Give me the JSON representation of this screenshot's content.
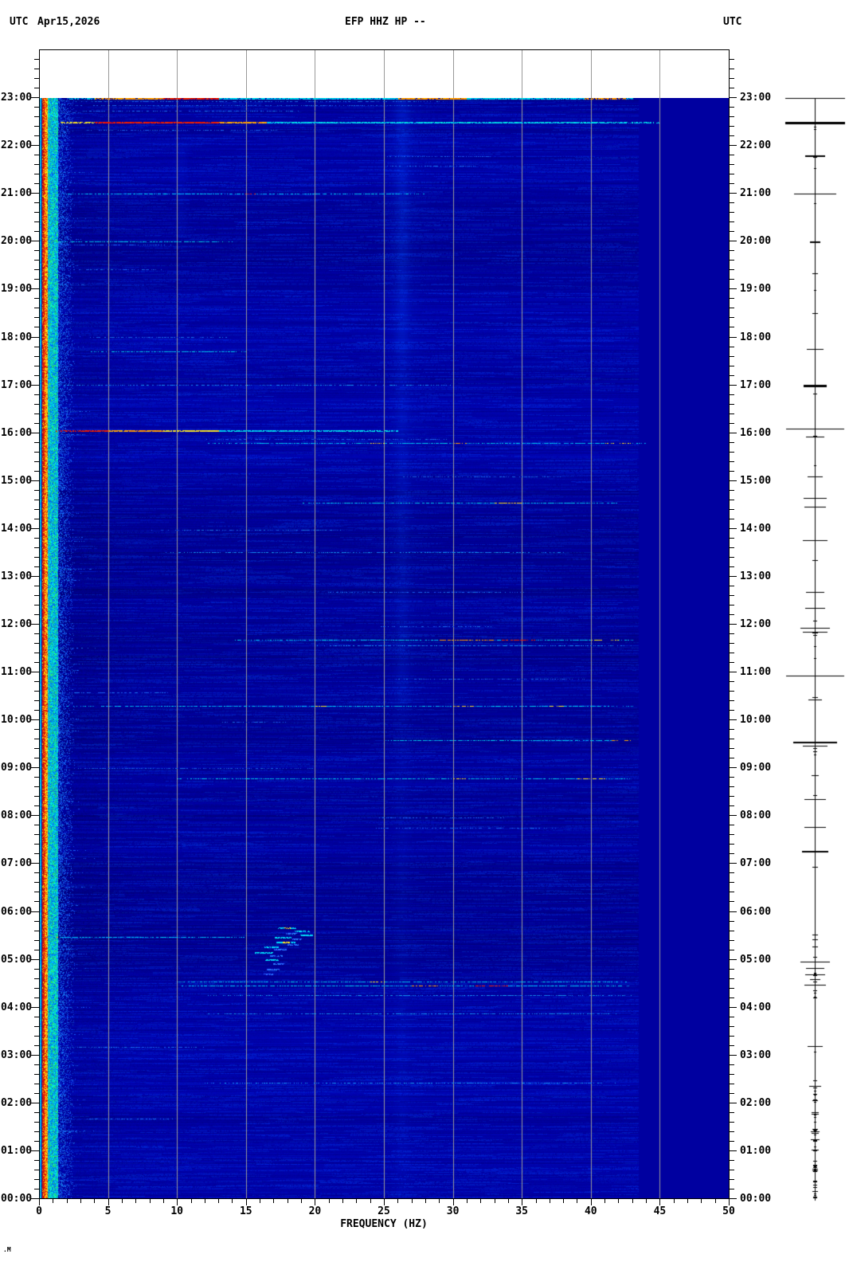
{
  "header": {
    "tz_left": "UTC",
    "date": "Apr15,2026",
    "title": "EFP HHZ HP --",
    "tz_right": "UTC"
  },
  "watermark": ".M",
  "colors": {
    "page_bg": "#ffffff",
    "plot_flat_navy": "#0000a0",
    "grid": "#999999",
    "axis": "#000000",
    "microseism_red": "#cc0000",
    "band_orange": "#ff9000",
    "event_cyan": "#00c8ff",
    "event_red": "#e02000",
    "event_yellow": "#f0d020",
    "tremor_blue": "#2850ff"
  },
  "chart_data": {
    "type": "heatmap",
    "title": "EFP HHZ HP --",
    "date": "Apr15,2026",
    "timezone": "UTC",
    "xlabel": "FREQUENCY (HZ)",
    "x_range_hz": [
      0,
      50
    ],
    "x_major_tick_step_hz": 5,
    "x_minor_tick_step_hz": 1,
    "x_tick_labels": [
      "0",
      "5",
      "10",
      "15",
      "20",
      "25",
      "30",
      "35",
      "40",
      "45",
      "50"
    ],
    "grid_hz": [
      5,
      10,
      15,
      20,
      25,
      30,
      35,
      40,
      45
    ],
    "time_axis": {
      "top": "24:00",
      "bottom": "00:00",
      "major_step_min": 60,
      "minor_step_min": 12,
      "hour_labels": [
        "23:00",
        "22:00",
        "21:00",
        "20:00",
        "19:00",
        "18:00",
        "17:00",
        "16:00",
        "15:00",
        "14:00",
        "13:00",
        "12:00",
        "11:00",
        "10:00",
        "09:00",
        "08:00",
        "07:00",
        "06:00",
        "05:00",
        "04:00",
        "03:00",
        "02:00",
        "01:00",
        "00:00"
      ]
    },
    "spectrogram_extent_hz": 43.5,
    "microseism_band": {
      "f0": 0,
      "f1": 2.4,
      "peak_hz": 0.25
    },
    "vertical_band_hz": 26.3,
    "events": [
      {
        "t": "23:00",
        "f0": 2,
        "f1": 43,
        "lvl": "strong",
        "hot": [
          [
            4,
            9,
            "orange"
          ],
          [
            9,
            13,
            "red"
          ],
          [
            26,
            31,
            "orange"
          ],
          [
            39.5,
            42.5,
            "orange"
          ]
        ]
      },
      {
        "t": "22:56",
        "f0": 2,
        "f1": 30,
        "lvl": "faint"
      },
      {
        "t": "22:51",
        "f0": 2,
        "f1": 28,
        "lvl": "faint"
      },
      {
        "t": "22:44",
        "f0": 2,
        "f1": 20,
        "lvl": "faint"
      },
      {
        "t": "22:30",
        "f0": 0.8,
        "f1": 45,
        "lvl": "strong",
        "hot": [
          [
            1.5,
            4,
            "yellow"
          ],
          [
            4,
            13,
            "red"
          ],
          [
            13,
            16.5,
            "orange"
          ]
        ]
      },
      {
        "t": "22:20",
        "f0": 3,
        "f1": 18,
        "lvl": "faint"
      },
      {
        "t": "21:47",
        "f0": 25,
        "f1": 33,
        "lvl": "faint"
      },
      {
        "t": "21:35",
        "f0": 25,
        "f1": 32,
        "lvl": "faint"
      },
      {
        "t": "21:00",
        "f0": 1,
        "f1": 28,
        "lvl": "cyan",
        "hot": [
          [
            14.8,
            15.7,
            "red"
          ]
        ]
      },
      {
        "t": "20:00",
        "f0": 1,
        "f1": 14,
        "lvl": "cyan"
      },
      {
        "t": "19:56",
        "f0": 1,
        "f1": 10,
        "lvl": "faint"
      },
      {
        "t": "19:25",
        "f0": 2,
        "f1": 9,
        "lvl": "faint"
      },
      {
        "t": "18:00",
        "f0": 3,
        "f1": 14,
        "lvl": "faint"
      },
      {
        "t": "17:42",
        "f0": 3.5,
        "f1": 15,
        "lvl": "cyan"
      },
      {
        "t": "17:00",
        "f0": 1,
        "f1": 30,
        "lvl": "dim"
      },
      {
        "t": "16:03",
        "f0": 0.8,
        "f1": 26,
        "lvl": "strong",
        "hot": [
          [
            1.2,
            5,
            "red"
          ],
          [
            5,
            9,
            "orange"
          ],
          [
            9,
            13,
            "yellow"
          ]
        ]
      },
      {
        "t": "15:52",
        "f0": 12,
        "f1": 30,
        "lvl": "faint"
      },
      {
        "t": "15:47",
        "f0": 12,
        "f1": 44,
        "lvl": "cyan",
        "hot": [
          [
            24,
            25,
            "yellow"
          ],
          [
            30,
            31,
            "orange"
          ],
          [
            41,
            43,
            "yellow"
          ]
        ]
      },
      {
        "t": "15:05",
        "f0": 26,
        "f1": 38,
        "lvl": "faint"
      },
      {
        "t": "14:32",
        "f0": 19,
        "f1": 42,
        "lvl": "cyan",
        "hot": [
          [
            33,
            35,
            "yellow"
          ]
        ]
      },
      {
        "t": "13:58",
        "f0": 8,
        "f1": 22,
        "lvl": "faint"
      },
      {
        "t": "13:30",
        "f0": 9,
        "f1": 38,
        "lvl": "dim"
      },
      {
        "t": "12:40",
        "f0": 20,
        "f1": 36,
        "lvl": "faint"
      },
      {
        "t": "11:57",
        "f0": 24,
        "f1": 33,
        "lvl": "faint"
      },
      {
        "t": "11:40",
        "f0": 14,
        "f1": 43,
        "lvl": "cyan",
        "hot": [
          [
            29,
            33,
            "orange"
          ],
          [
            33.5,
            36,
            "red"
          ],
          [
            40,
            42,
            "yellow"
          ]
        ]
      },
      {
        "t": "11:33",
        "f0": 20,
        "f1": 43,
        "lvl": "dim"
      },
      {
        "t": "10:52",
        "f0": 25,
        "f1": 40,
        "lvl": "faint"
      },
      {
        "t": "10:35",
        "f0": 1,
        "f1": 10,
        "lvl": "faint"
      },
      {
        "t": "10:18",
        "f0": 2,
        "f1": 43,
        "lvl": "cyan",
        "hot": [
          [
            20,
            20.8,
            "yellow"
          ],
          [
            30,
            31.5,
            "yellow"
          ],
          [
            37,
            38,
            "yellow"
          ]
        ]
      },
      {
        "t": "09:58",
        "f0": 13,
        "f1": 18,
        "lvl": "faint"
      },
      {
        "t": "09:35",
        "f0": 25,
        "f1": 43,
        "lvl": "cyan",
        "hot": [
          [
            41.5,
            43,
            "orange"
          ]
        ]
      },
      {
        "t": "09:00",
        "f0": 2,
        "f1": 20,
        "lvl": "faint"
      },
      {
        "t": "08:47",
        "f0": 10,
        "f1": 43,
        "lvl": "cyan",
        "hot": [
          [
            30,
            31,
            "yellow"
          ],
          [
            39,
            41,
            "yellow"
          ]
        ]
      },
      {
        "t": "07:58",
        "f0": 24,
        "f1": 34,
        "lvl": "faint"
      },
      {
        "t": "07:45",
        "f0": 24,
        "f1": 38,
        "lvl": "faint"
      },
      {
        "t": "05:28",
        "f0": 0.5,
        "f1": 15,
        "lvl": "cyan",
        "hot": [
          [
            1,
            1.5,
            "orange"
          ]
        ]
      },
      {
        "t": "04:32",
        "f0": 10,
        "f1": 43,
        "lvl": "cyan",
        "hot": [
          [
            24,
            25,
            "yellow"
          ]
        ]
      },
      {
        "t": "04:27",
        "f0": 10,
        "f1": 43,
        "lvl": "cyan",
        "hot": [
          [
            27,
            29,
            "orange"
          ],
          [
            31.5,
            34,
            "red"
          ]
        ]
      },
      {
        "t": "04:15",
        "f0": 12,
        "f1": 43,
        "lvl": "dim"
      },
      {
        "t": "03:52",
        "f0": 12,
        "f1": 42,
        "lvl": "dim"
      },
      {
        "t": "03:10",
        "f0": 2,
        "f1": 12,
        "lvl": "faint"
      },
      {
        "t": "02:25",
        "f0": 12,
        "f1": 42,
        "lvl": "dim"
      },
      {
        "t": "01:40",
        "f0": 3,
        "f1": 10,
        "lvl": "faint"
      }
    ],
    "tremor_cluster": {
      "f0": 16,
      "f1": 19.7,
      "t_start": "05:42",
      "t_end": "04:40",
      "dashes": [
        [
          18.0,
          "05:40",
          1.3,
          "y"
        ],
        [
          19.1,
          "05:36",
          1.1,
          "c"
        ],
        [
          18.3,
          "05:33",
          0.8,
          "b"
        ],
        [
          19.4,
          "05:31",
          0.9,
          "c"
        ],
        [
          17.7,
          "05:28",
          1.2,
          "c"
        ],
        [
          18.7,
          "05:26",
          0.7,
          "b"
        ],
        [
          17.9,
          "05:22",
          1.4,
          "y"
        ],
        [
          18.4,
          "05:19",
          0.8,
          "b"
        ],
        [
          16.9,
          "05:16",
          1.1,
          "c"
        ],
        [
          17.5,
          "05:13",
          0.9,
          "b"
        ],
        [
          16.3,
          "05:09",
          1.3,
          "c"
        ],
        [
          17.2,
          "05:05",
          0.9,
          "b"
        ],
        [
          16.9,
          "05:00",
          1.0,
          "c"
        ],
        [
          17.4,
          "04:55",
          0.8,
          "b"
        ],
        [
          17.0,
          "04:48",
          0.9,
          "b"
        ],
        [
          16.6,
          "04:42",
          0.7,
          "b"
        ]
      ]
    },
    "amplitude_trace": {
      "events": [
        [
          "23:00",
          37,
          1
        ],
        [
          "22:30",
          37,
          3
        ],
        [
          "21:48",
          12,
          2
        ],
        [
          "21:00",
          26,
          1
        ],
        [
          "20:00",
          6,
          2
        ],
        [
          "19:20",
          3,
          1
        ],
        [
          "18:30",
          3,
          1
        ],
        [
          "17:45",
          10,
          1
        ],
        [
          "17:00",
          14,
          3
        ],
        [
          "16:05",
          36,
          1
        ],
        [
          "15:55",
          11,
          1
        ],
        [
          "15:05",
          9,
          1
        ],
        [
          "14:38",
          14,
          1
        ],
        [
          "14:27",
          13,
          1
        ],
        [
          "13:45",
          15,
          1
        ],
        [
          "13:20",
          3,
          1
        ],
        [
          "12:40",
          11,
          1
        ],
        [
          "12:20",
          12,
          1
        ],
        [
          "11:55",
          18,
          1
        ],
        [
          "11:50",
          15,
          1
        ],
        [
          "10:55",
          36,
          1
        ],
        [
          "10:25",
          8,
          1
        ],
        [
          "09:32",
          27,
          2
        ],
        [
          "09:27",
          15,
          1
        ],
        [
          "08:50",
          4,
          1
        ],
        [
          "08:20",
          13,
          1
        ],
        [
          "07:45",
          13,
          1
        ],
        [
          "07:15",
          16,
          2
        ],
        [
          "06:55",
          3,
          1
        ],
        [
          "05:30",
          3,
          1
        ],
        [
          "05:15",
          3,
          1
        ],
        [
          "04:56",
          18,
          1
        ],
        [
          "04:48",
          11,
          1
        ],
        [
          "04:40",
          12,
          1
        ],
        [
          "04:34",
          6,
          1
        ],
        [
          "04:27",
          13,
          1
        ],
        [
          "03:10",
          9,
          1
        ],
        [
          "02:20",
          7,
          1
        ],
        [
          "01:45",
          4,
          1
        ]
      ]
    }
  }
}
